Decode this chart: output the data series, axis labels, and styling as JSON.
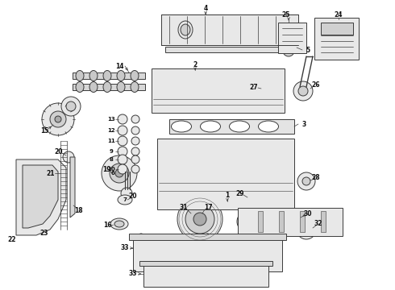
{
  "bg_color": "#ffffff",
  "fig_width": 4.9,
  "fig_height": 3.6,
  "dpi": 100,
  "line_color": "#3a3a3a",
  "lw": 0.7
}
